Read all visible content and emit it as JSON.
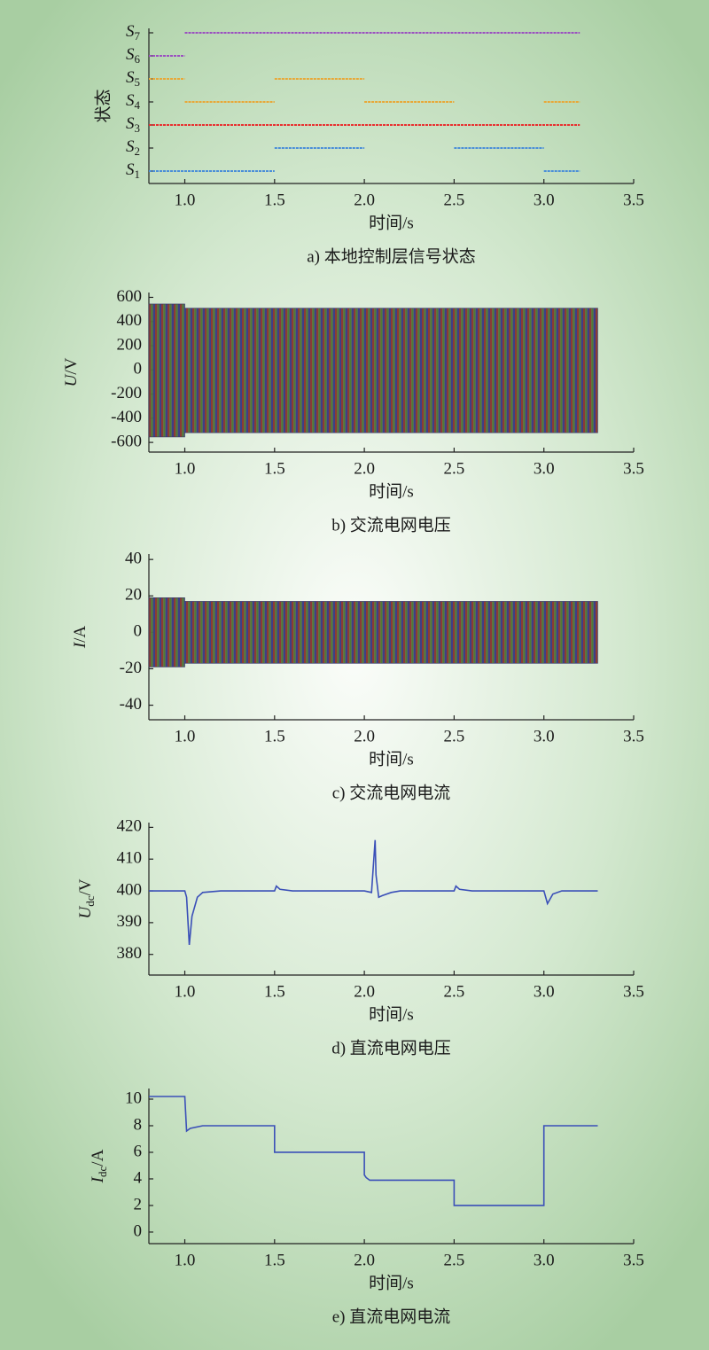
{
  "chart_data": [
    {
      "type": "state",
      "caption": "a) 本地控制层信号状态",
      "xlabel": "时间/s",
      "ylabel": "状态",
      "xlim": [
        0.8,
        3.5
      ],
      "xticks": [
        {
          "value": 1,
          "label": "1.0"
        },
        1.5,
        {
          "value": 2,
          "label": "2.0"
        },
        2.5,
        {
          "value": 3,
          "label": "3.0"
        },
        3.5
      ],
      "categories": [
        "S1",
        "S2",
        "S3",
        "S4",
        "S5",
        "S6",
        "S7"
      ],
      "colors": [
        "#4a8ed8",
        "#4a8ed8",
        "#e83030",
        "#e8a838",
        "#e8a838",
        "#9b4fc0",
        "#9b4fc0"
      ],
      "intervals": [
        [
          [
            0.8,
            1.5
          ],
          [
            3.0,
            3.2
          ]
        ],
        [
          [
            1.5,
            2.0
          ],
          [
            2.5,
            3.0
          ]
        ],
        [
          [
            0.8,
            3.2
          ]
        ],
        [
          [
            1.0,
            1.5
          ],
          [
            2.0,
            2.5
          ],
          [
            3.0,
            3.2
          ]
        ],
        [
          [
            0.8,
            1.0
          ],
          [
            1.5,
            2.0
          ]
        ],
        [
          [
            0.8,
            1.0
          ]
        ],
        [
          [
            1.0,
            3.2
          ]
        ]
      ]
    },
    {
      "type": "band",
      "caption": "b) 交流电网电压",
      "xlabel": "时间/s",
      "ylabel": "U/V",
      "xlim": [
        0.8,
        3.5
      ],
      "xticks": [
        {
          "value": 1,
          "label": "1.0"
        },
        1.5,
        {
          "value": 2,
          "label": "2.0"
        },
        2.5,
        {
          "value": 3,
          "label": "3.0"
        },
        3.5
      ],
      "ylim": [
        -680,
        640
      ],
      "yticks": [
        -600,
        -400,
        -200,
        0,
        200,
        400,
        600
      ],
      "x": [
        0.8,
        1.0,
        1.0,
        3.3
      ],
      "upper": [
        545,
        545,
        510,
        510
      ],
      "lower": [
        -555,
        -555,
        -520,
        -520
      ]
    },
    {
      "type": "band",
      "caption": "c) 交流电网电流",
      "xlabel": "时间/s",
      "ylabel": "I/A",
      "xlim": [
        0.8,
        3.5
      ],
      "xticks": [
        {
          "value": 1,
          "label": "1.0"
        },
        1.5,
        {
          "value": 2,
          "label": "2.0"
        },
        2.5,
        {
          "value": 3,
          "label": "3.0"
        },
        3.5
      ],
      "ylim": [
        -48,
        43
      ],
      "yticks": [
        -40,
        -20,
        0,
        20,
        40
      ],
      "x": [
        0.8,
        1.0,
        1.0,
        3.3
      ],
      "upper": [
        19,
        19,
        17,
        17
      ],
      "lower": [
        -19,
        -19,
        -17,
        -17
      ]
    },
    {
      "type": "line",
      "caption": "d) 直流电网电压",
      "xlabel": "时间/s",
      "ylabel": "Udc/V",
      "xlim": [
        0.8,
        3.5
      ],
      "xticks": [
        {
          "value": 1,
          "label": "1.0"
        },
        1.5,
        {
          "value": 2,
          "label": "2.0"
        },
        2.5,
        {
          "value": 3,
          "label": "3.0"
        },
        3.5
      ],
      "ylim": [
        373.5,
        421.5
      ],
      "yticks": [
        380,
        390,
        400,
        410,
        420
      ],
      "color": "#3a4fb8",
      "x": [
        0.8,
        1.0,
        1.01,
        1.025,
        1.04,
        1.07,
        1.1,
        1.2,
        1.5,
        1.51,
        1.53,
        1.6,
        2.0,
        2.04,
        2.06,
        2.065,
        2.08,
        2.1,
        2.15,
        2.2,
        2.5,
        2.51,
        2.53,
        2.6,
        3.0,
        3.01,
        3.02,
        3.05,
        3.1,
        3.3
      ],
      "values": [
        400,
        400,
        398,
        383,
        392,
        398,
        399.5,
        400,
        400,
        401.5,
        400.5,
        400,
        400,
        399.5,
        416,
        405,
        398,
        398.5,
        399.5,
        400,
        400,
        401.5,
        400.5,
        400,
        400,
        398,
        396,
        399,
        400,
        400
      ]
    },
    {
      "type": "line",
      "caption": "e) 直流电网电流",
      "xlabel": "时间/s",
      "ylabel": "Idc/A",
      "xlim": [
        0.8,
        3.5
      ],
      "xticks": [
        {
          "value": 1,
          "label": "1.0"
        },
        1.5,
        {
          "value": 2,
          "label": "2.0"
        },
        2.5,
        {
          "value": 3,
          "label": "3.0"
        },
        3.5
      ],
      "ylim": [
        -0.87,
        10.8
      ],
      "yticks": [
        0,
        2,
        4,
        6,
        8,
        10
      ],
      "color": "#3a4fb8",
      "x": [
        0.8,
        1.0,
        1.01,
        1.03,
        1.1,
        1.5,
        1.5,
        2.0,
        2.0,
        2.01,
        2.03,
        2.1,
        2.5,
        2.5,
        3.0,
        3.0,
        3.3
      ],
      "values": [
        10.2,
        10.2,
        7.6,
        7.8,
        8.0,
        8.0,
        6.0,
        6.0,
        4.3,
        4.1,
        3.9,
        3.9,
        3.9,
        2.0,
        2.0,
        8.0,
        8.0
      ]
    }
  ]
}
